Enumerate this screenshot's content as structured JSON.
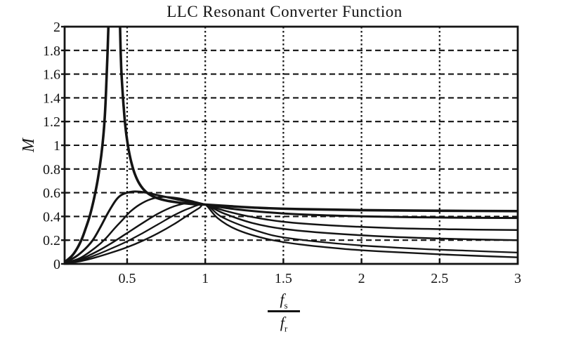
{
  "colors": {
    "ink": "#141414",
    "background": "#ffffff"
  },
  "chart_data": {
    "type": "line",
    "title": "LLC Resonant Converter Function",
    "ylabel": "M",
    "xlabel": {
      "num": "f",
      "num_sub": "s",
      "den": "f",
      "den_sub": "r"
    },
    "xlim": [
      0.1,
      3
    ],
    "ylim": [
      0,
      2
    ],
    "xticks": {
      "values": [
        0.5,
        1,
        1.5,
        2,
        2.5,
        3
      ],
      "labels": [
        "0.5",
        "1",
        "1.5",
        "2",
        "2.5",
        "3"
      ]
    },
    "yticks": {
      "values": [
        2,
        1.8,
        1.6,
        1.4,
        1.2,
        1,
        0.8,
        0.6,
        0.4,
        0.2,
        0
      ],
      "labels": [
        "2",
        "1.8",
        "1.6",
        "1.4",
        "1.2",
        "1",
        "0.8",
        "0.6",
        "0.4",
        "0.2",
        "0"
      ]
    },
    "grid": {
      "horizontal": "dashed",
      "vertical": "dotted"
    },
    "legend": "none",
    "all_curves_cross_at": {
      "x": 1,
      "y": 0.5
    },
    "series": [
      {
        "name": "curve-1",
        "segments": [
          [
            [
              0.1,
              0.015
            ],
            [
              0.145,
              0.065
            ],
            [
              0.18,
              0.13
            ],
            [
              0.21,
              0.21
            ],
            [
              0.235,
              0.3
            ],
            [
              0.26,
              0.4
            ],
            [
              0.283,
              0.52
            ],
            [
              0.305,
              0.66
            ],
            [
              0.325,
              0.82
            ],
            [
              0.342,
              1.0
            ],
            [
              0.355,
              1.2
            ],
            [
              0.365,
              1.45
            ],
            [
              0.373,
              1.72
            ],
            [
              0.38,
              2.0
            ],
            [
              0.384,
              2.2
            ]
          ],
          [
            [
              0.452,
              2.2
            ],
            [
              0.456,
              1.92
            ],
            [
              0.462,
              1.66
            ],
            [
              0.47,
              1.47
            ],
            [
              0.478,
              1.32
            ],
            [
              0.487,
              1.18
            ],
            [
              0.497,
              1.07
            ],
            [
              0.51,
              0.96
            ],
            [
              0.527,
              0.855
            ],
            [
              0.55,
              0.755
            ],
            [
              0.58,
              0.672
            ],
            [
              0.62,
              0.608
            ],
            [
              0.67,
              0.566
            ],
            [
              0.74,
              0.537
            ],
            [
              0.83,
              0.517
            ],
            [
              0.92,
              0.505
            ],
            [
              1.0,
              0.5
            ],
            [
              1.15,
              0.487
            ],
            [
              1.35,
              0.472
            ],
            [
              1.6,
              0.462
            ],
            [
              2.0,
              0.453
            ],
            [
              2.5,
              0.448
            ],
            [
              3.0,
              0.445
            ]
          ]
        ]
      },
      {
        "name": "curve-2",
        "segments": [
          [
            [
              0.1,
              0.01
            ],
            [
              0.17,
              0.06
            ],
            [
              0.23,
              0.125
            ],
            [
              0.28,
              0.2
            ],
            [
              0.325,
              0.3
            ],
            [
              0.365,
              0.4
            ],
            [
              0.4,
              0.48
            ],
            [
              0.43,
              0.54
            ],
            [
              0.46,
              0.578
            ],
            [
              0.5,
              0.6
            ],
            [
              0.55,
              0.61
            ],
            [
              0.62,
              0.601
            ],
            [
              0.7,
              0.578
            ],
            [
              0.8,
              0.55
            ],
            [
              0.9,
              0.522
            ],
            [
              1.0,
              0.5
            ],
            [
              1.15,
              0.468
            ],
            [
              1.35,
              0.44
            ],
            [
              1.6,
              0.418
            ],
            [
              2.0,
              0.401
            ],
            [
              2.5,
              0.391
            ],
            [
              3.0,
              0.387
            ]
          ]
        ]
      },
      {
        "name": "curve-3",
        "segments": [
          [
            [
              0.1,
              0.008
            ],
            [
              0.2,
              0.05
            ],
            [
              0.3,
              0.14
            ],
            [
              0.36,
              0.21
            ],
            [
              0.42,
              0.3
            ],
            [
              0.47,
              0.37
            ],
            [
              0.52,
              0.44
            ],
            [
              0.58,
              0.5
            ],
            [
              0.65,
              0.545
            ],
            [
              0.73,
              0.565
            ],
            [
              0.82,
              0.555
            ],
            [
              0.91,
              0.53
            ],
            [
              1.0,
              0.5
            ],
            [
              1.12,
              0.45
            ],
            [
              1.3,
              0.395
            ],
            [
              1.5,
              0.355
            ],
            [
              1.8,
              0.325
            ],
            [
              2.2,
              0.302
            ],
            [
              2.6,
              0.291
            ],
            [
              3.0,
              0.285
            ]
          ]
        ]
      },
      {
        "name": "curve-4",
        "segments": [
          [
            [
              0.1,
              0.007
            ],
            [
              0.2,
              0.04
            ],
            [
              0.3,
              0.1
            ],
            [
              0.4,
              0.175
            ],
            [
              0.5,
              0.26
            ],
            [
              0.6,
              0.345
            ],
            [
              0.7,
              0.425
            ],
            [
              0.8,
              0.485
            ],
            [
              0.9,
              0.515
            ],
            [
              1.0,
              0.5
            ],
            [
              1.12,
              0.425
            ],
            [
              1.3,
              0.345
            ],
            [
              1.5,
              0.295
            ],
            [
              1.8,
              0.258
            ],
            [
              2.2,
              0.228
            ],
            [
              2.6,
              0.21
            ],
            [
              3.0,
              0.2
            ]
          ]
        ]
      },
      {
        "name": "curve-5",
        "segments": [
          [
            [
              0.1,
              0.006
            ],
            [
              0.2,
              0.03
            ],
            [
              0.3,
              0.075
            ],
            [
              0.4,
              0.13
            ],
            [
              0.5,
              0.19
            ],
            [
              0.6,
              0.26
            ],
            [
              0.7,
              0.335
            ],
            [
              0.8,
              0.41
            ],
            [
              0.9,
              0.47
            ],
            [
              1.0,
              0.5
            ],
            [
              1.1,
              0.4
            ],
            [
              1.25,
              0.315
            ],
            [
              1.45,
              0.235
            ],
            [
              1.7,
              0.19
            ],
            [
              2.0,
              0.155
            ],
            [
              2.4,
              0.125
            ],
            [
              2.7,
              0.11
            ],
            [
              3.0,
              0.095
            ]
          ]
        ]
      },
      {
        "name": "curve-6",
        "segments": [
          [
            [
              0.1,
              0.005
            ],
            [
              0.2,
              0.022
            ],
            [
              0.3,
              0.055
            ],
            [
              0.4,
              0.095
            ],
            [
              0.5,
              0.14
            ],
            [
              0.6,
              0.195
            ],
            [
              0.7,
              0.26
            ],
            [
              0.8,
              0.335
            ],
            [
              0.9,
              0.42
            ],
            [
              0.96,
              0.47
            ],
            [
              1.0,
              0.5
            ],
            [
              1.08,
              0.385
            ],
            [
              1.2,
              0.29
            ],
            [
              1.38,
              0.215
            ],
            [
              1.6,
              0.165
            ],
            [
              1.9,
              0.125
            ],
            [
              2.2,
              0.1
            ],
            [
              2.6,
              0.075
            ],
            [
              3.0,
              0.055
            ]
          ]
        ]
      }
    ]
  }
}
